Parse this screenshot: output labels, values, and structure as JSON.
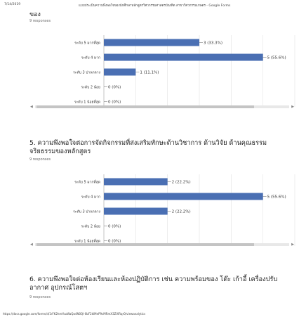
{
  "print": {
    "date": "7/14/2019",
    "doc_title": "แบบประเมินความพึงพอใจของนักศึกษาหลักสูตรวิศวกรรมศาสตรบัณฑิต สาขาวิศวกรรมเกษตร - Google Forms",
    "url": "https://docs.google.com/forms/d/1rFK2hmYouWaQa4N0Ql-0bF2kIMeP9cMRmX3ZlXRqr0/viewanalytics"
  },
  "question4_title_cont": "ของ",
  "question4_responses": "9 responses",
  "question5": {
    "title": "5. ความพึงพอใจต่อการจัดกิจกรรมที่ส่งเสริมทักษะด้านวิชาการ ด้านวิจัย ด้านคุณธรรมจริยธรรมของหลักสูตร",
    "responses": "9 responses"
  },
  "question6": {
    "title": "6. ความพึงพอใจต่อห้องเรียนและห้องปฏิบัติการ เช่น ความพร้อมของ โต๊ะ เก้าอี้ เครื่องปรับอากาศ อุปกรณ์โสตฯ",
    "responses": "9 responses"
  },
  "chart_data": [
    {
      "type": "bar",
      "orientation": "horizontal",
      "categories": [
        "ระดับ 5 มากที่สุด",
        "ระดับ 4 มาก",
        "ระดับ 3 ปานกลาง",
        "ระดับ 2 น้อย",
        "ระดับ 1 น้อยที่สุด"
      ],
      "values": [
        3,
        5,
        1,
        0,
        0
      ],
      "data_labels": [
        "3 (33.3%)",
        "5 (55.6%)",
        "1 (11.1%)",
        "0 (0%)",
        "0 (0%)"
      ],
      "x_ticks": [
        "0",
        "1",
        "2",
        "3",
        "4",
        "5",
        "6"
      ],
      "xlim": [
        0,
        6
      ],
      "bar_color": "#4a6fb3",
      "grid": true
    },
    {
      "type": "bar",
      "orientation": "horizontal",
      "categories": [
        "ระดับ 5 มากที่สุด",
        "ระดับ 4 มาก",
        "ระดับ 3 ปานกลาง",
        "ระดับ 2 น้อย",
        "ระดับ 1 น้อยที่สุด"
      ],
      "values": [
        2,
        5,
        2,
        0,
        0
      ],
      "data_labels": [
        "2 (22.2%)",
        "5 (55.6%)",
        "2 (22.2%)",
        "0 (0%)",
        "0 (0%)"
      ],
      "x_ticks": [
        "0",
        "1",
        "2",
        "3",
        "4",
        "5",
        "6"
      ],
      "xlim": [
        0,
        6
      ],
      "bar_color": "#4a6fb3",
      "grid": true
    }
  ]
}
